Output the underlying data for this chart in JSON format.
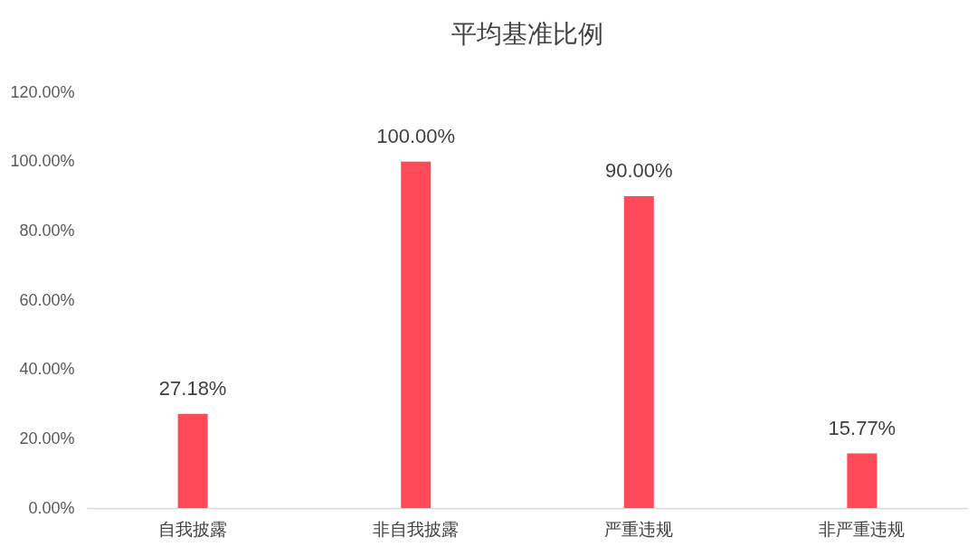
{
  "chart_data": {
    "type": "bar",
    "title": "平均基准比例",
    "categories": [
      "自我披露",
      "非自我披露",
      "严重违规",
      "非严重违规"
    ],
    "values": [
      27.18,
      100,
      90,
      15.77
    ],
    "value_labels": [
      "27.18%",
      "100.00%",
      "90.00%",
      "15.77%"
    ],
    "color": "#ff4a5a",
    "ylim": [
      0,
      120
    ],
    "yticks": [
      {
        "value": 0,
        "label": "0.00%"
      },
      {
        "value": 20,
        "label": "20.00%"
      },
      {
        "value": 40,
        "label": "40.00%"
      },
      {
        "value": 60,
        "label": "60.00%"
      },
      {
        "value": 80,
        "label": "80.00%"
      },
      {
        "value": 100,
        "label": "100.00%"
      },
      {
        "value": 120,
        "label": "120.00%"
      }
    ],
    "grid": false
  }
}
